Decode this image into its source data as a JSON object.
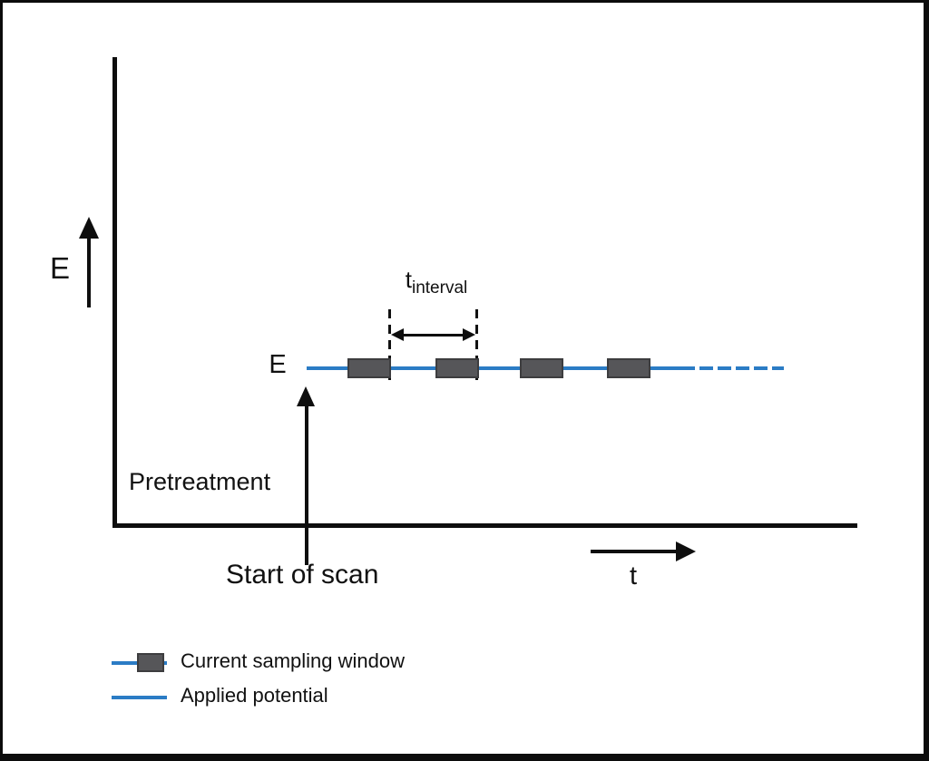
{
  "figure": {
    "type": "potential-vs-time-schematic",
    "y_axis_label": "E",
    "x_axis_label": "t",
    "applied_potential_label": "E",
    "interval": {
      "base": "t",
      "subscript": "interval"
    },
    "pretreatment_label": "Pretreatment",
    "start_of_scan_label": "Start of scan",
    "sampling_windows_count": 4,
    "legend": {
      "items": [
        {
          "label": "Current sampling window"
        },
        {
          "label": "Applied potential"
        }
      ]
    },
    "colors": {
      "applied_potential_blue": "#2b7cc5",
      "sampling_window_fill": "#565659",
      "sampling_window_border": "#3d3d3f",
      "axis_black": "#0e0e0e"
    }
  }
}
